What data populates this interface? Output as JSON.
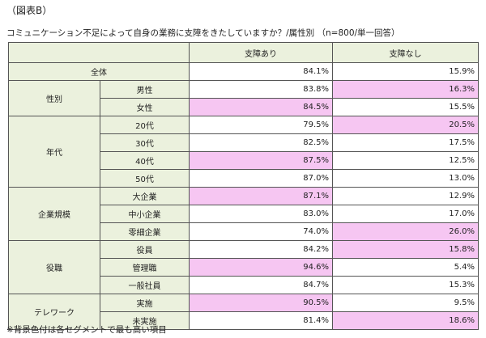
{
  "caption": "（図表B）",
  "subtitle": "コミュニケーション不足によって自身の業務に支障をきたしていますか？/属性別 （n=800/単一回答）",
  "table": {
    "header": [
      "支障あり",
      "支障なし"
    ],
    "total": {
      "label": "全体",
      "values": [
        "84.1%",
        "15.9%"
      ]
    },
    "groups": [
      {
        "label": "性別",
        "rows": [
          {
            "label": "男性",
            "values": [
              "83.8%",
              "16.3%"
            ]
          },
          {
            "label": "女性",
            "values": [
              "84.5%",
              "15.5%"
            ]
          }
        ]
      },
      {
        "label": "年代",
        "rows": [
          {
            "label": "20代",
            "values": [
              "79.5%",
              "20.5%"
            ]
          },
          {
            "label": "30代",
            "values": [
              "82.5%",
              "17.5%"
            ]
          },
          {
            "label": "40代",
            "values": [
              "87.5%",
              "12.5%"
            ]
          },
          {
            "label": "50代",
            "values": [
              "87.0%",
              "13.0%"
            ]
          }
        ]
      },
      {
        "label": "企業規模",
        "rows": [
          {
            "label": "大企業",
            "values": [
              "87.1%",
              "12.9%"
            ]
          },
          {
            "label": "中小企業",
            "values": [
              "83.0%",
              "17.0%"
            ]
          },
          {
            "label": "零細企業",
            "values": [
              "74.0%",
              "26.0%"
            ]
          }
        ]
      },
      {
        "label": "役職",
        "rows": [
          {
            "label": "役員",
            "values": [
              "84.2%",
              "15.8%"
            ]
          },
          {
            "label": "管理職",
            "values": [
              "94.6%",
              "5.4%"
            ]
          },
          {
            "label": "一般社員",
            "values": [
              "84.7%",
              "15.3%"
            ]
          }
        ]
      },
      {
        "label": "テレワーク",
        "rows": [
          {
            "label": "実施",
            "values": [
              "90.5%",
              "9.5%"
            ]
          },
          {
            "label": "未実施",
            "values": [
              "81.4%",
              "18.6%"
            ]
          }
        ]
      }
    ]
  },
  "footnote": "※背景色付は各セグメントで最も高い項目"
}
